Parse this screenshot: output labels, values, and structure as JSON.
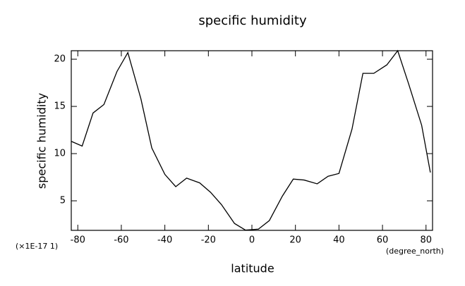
{
  "chart_data": {
    "type": "line",
    "title": "specific humidity",
    "x_label": "latitude",
    "y_label": "specific humidity",
    "x_units": "(degree_north)",
    "y_scale_note": "(×1E-17 1)",
    "x": [
      -83,
      -78,
      -73,
      -68,
      -62,
      -57,
      -51,
      -46,
      -40,
      -35,
      -30,
      -24,
      -19,
      -14,
      -8,
      -3,
      3,
      8,
      14,
      19,
      24,
      30,
      35,
      40,
      46,
      51,
      56,
      62,
      67,
      72,
      78,
      82
    ],
    "series": [
      {
        "name": "specific humidity",
        "color": "#000000",
        "values": [
          11.3,
          10.8,
          14.3,
          15.2,
          18.7,
          20.7,
          15.8,
          10.6,
          7.8,
          6.5,
          7.4,
          6.9,
          5.9,
          4.6,
          2.6,
          1.9,
          2.0,
          2.9,
          5.5,
          7.3,
          7.2,
          6.8,
          7.6,
          7.9,
          12.6,
          18.5,
          18.5,
          19.4,
          20.9,
          17.4,
          13.0,
          8.0
        ]
      }
    ],
    "xlim": [
      -83,
      83
    ],
    "ylim": [
      1.87,
      20.9
    ],
    "xticks": [
      -80,
      -60,
      -40,
      -20,
      0,
      20,
      40,
      60,
      80
    ],
    "yticks": [
      5,
      10,
      15,
      20
    ],
    "grid": false
  }
}
